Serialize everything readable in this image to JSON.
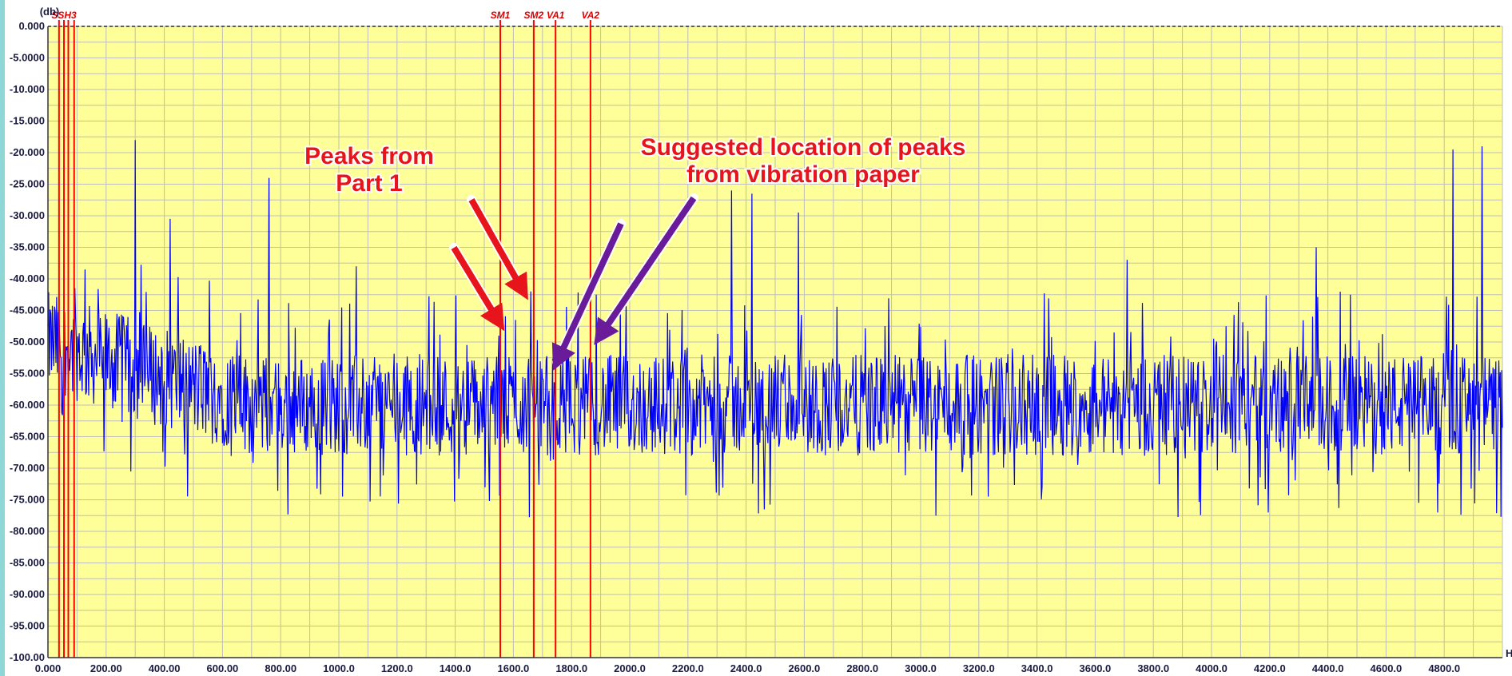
{
  "chart_data": {
    "type": "line",
    "xunit": "Hz",
    "yunit": "(db)",
    "xlim": [
      0,
      5000
    ],
    "ylim": [
      -100,
      0
    ],
    "x_ticks": [
      "0.000",
      "200.00",
      "400.00",
      "600.00",
      "800.00",
      "1000.0",
      "1200.0",
      "1400.0",
      "1600.0",
      "1800.0",
      "2000.0",
      "2200.0",
      "2400.0",
      "2600.0",
      "2800.0",
      "3000.0",
      "3200.0",
      "3400.0",
      "3600.0",
      "3800.0",
      "4000.0",
      "4200.0",
      "4400.0",
      "4600.0",
      "4800.0"
    ],
    "y_ticks": [
      "0.000",
      "-5.0000",
      "-10.000",
      "-15.000",
      "-20.000",
      "-25.000",
      "-30.000",
      "-35.000",
      "-40.000",
      "-45.000",
      "-50.000",
      "-55.000",
      "-60.000",
      "-65.000",
      "-70.000",
      "-75.000",
      "-80.000",
      "-85.000",
      "-90.000",
      "-95.000",
      "-100.00"
    ],
    "grid": true,
    "reference_line_y": 0,
    "colors": {
      "background": "#ffff99",
      "grid": "#bdbdbd",
      "trace": "#0000ff",
      "markers": "#ff0000",
      "red_arrows": "#e8141c",
      "purple_arrows": "#6a1b9a"
    },
    "markers": [
      {
        "label": "SSH3",
        "x": 55
      },
      {
        "label": "",
        "x": 38
      },
      {
        "label": "",
        "x": 70
      },
      {
        "label": "",
        "x": 90
      },
      {
        "label": "SM1",
        "x": 1555
      },
      {
        "label": "SM2",
        "x": 1670
      },
      {
        "label": "VA1",
        "x": 1745
      },
      {
        "label": "VA2",
        "x": 1865
      }
    ],
    "peaks": [
      {
        "x": 300,
        "y": -18
      },
      {
        "x": 420,
        "y": -30.5
      },
      {
        "x": 760,
        "y": -24
      },
      {
        "x": 1060,
        "y": -38
      },
      {
        "x": 1550,
        "y": -49
      },
      {
        "x": 1660,
        "y": -42
      },
      {
        "x": 2350,
        "y": -26
      },
      {
        "x": 2420,
        "y": -26.5
      },
      {
        "x": 2580,
        "y": -29.5
      },
      {
        "x": 3710,
        "y": -37
      },
      {
        "x": 4360,
        "y": -35
      },
      {
        "x": 4830,
        "y": -19.5
      },
      {
        "x": 4930,
        "y": -19
      }
    ],
    "baseline_level": -60,
    "annotations": [
      {
        "text_lines": [
          "Peaks from",
          "Part 1"
        ],
        "color": "#e8141c"
      },
      {
        "text_lines": [
          "Suggested location of peaks",
          "from vibration paper"
        ],
        "color": "#e8141c"
      }
    ]
  }
}
